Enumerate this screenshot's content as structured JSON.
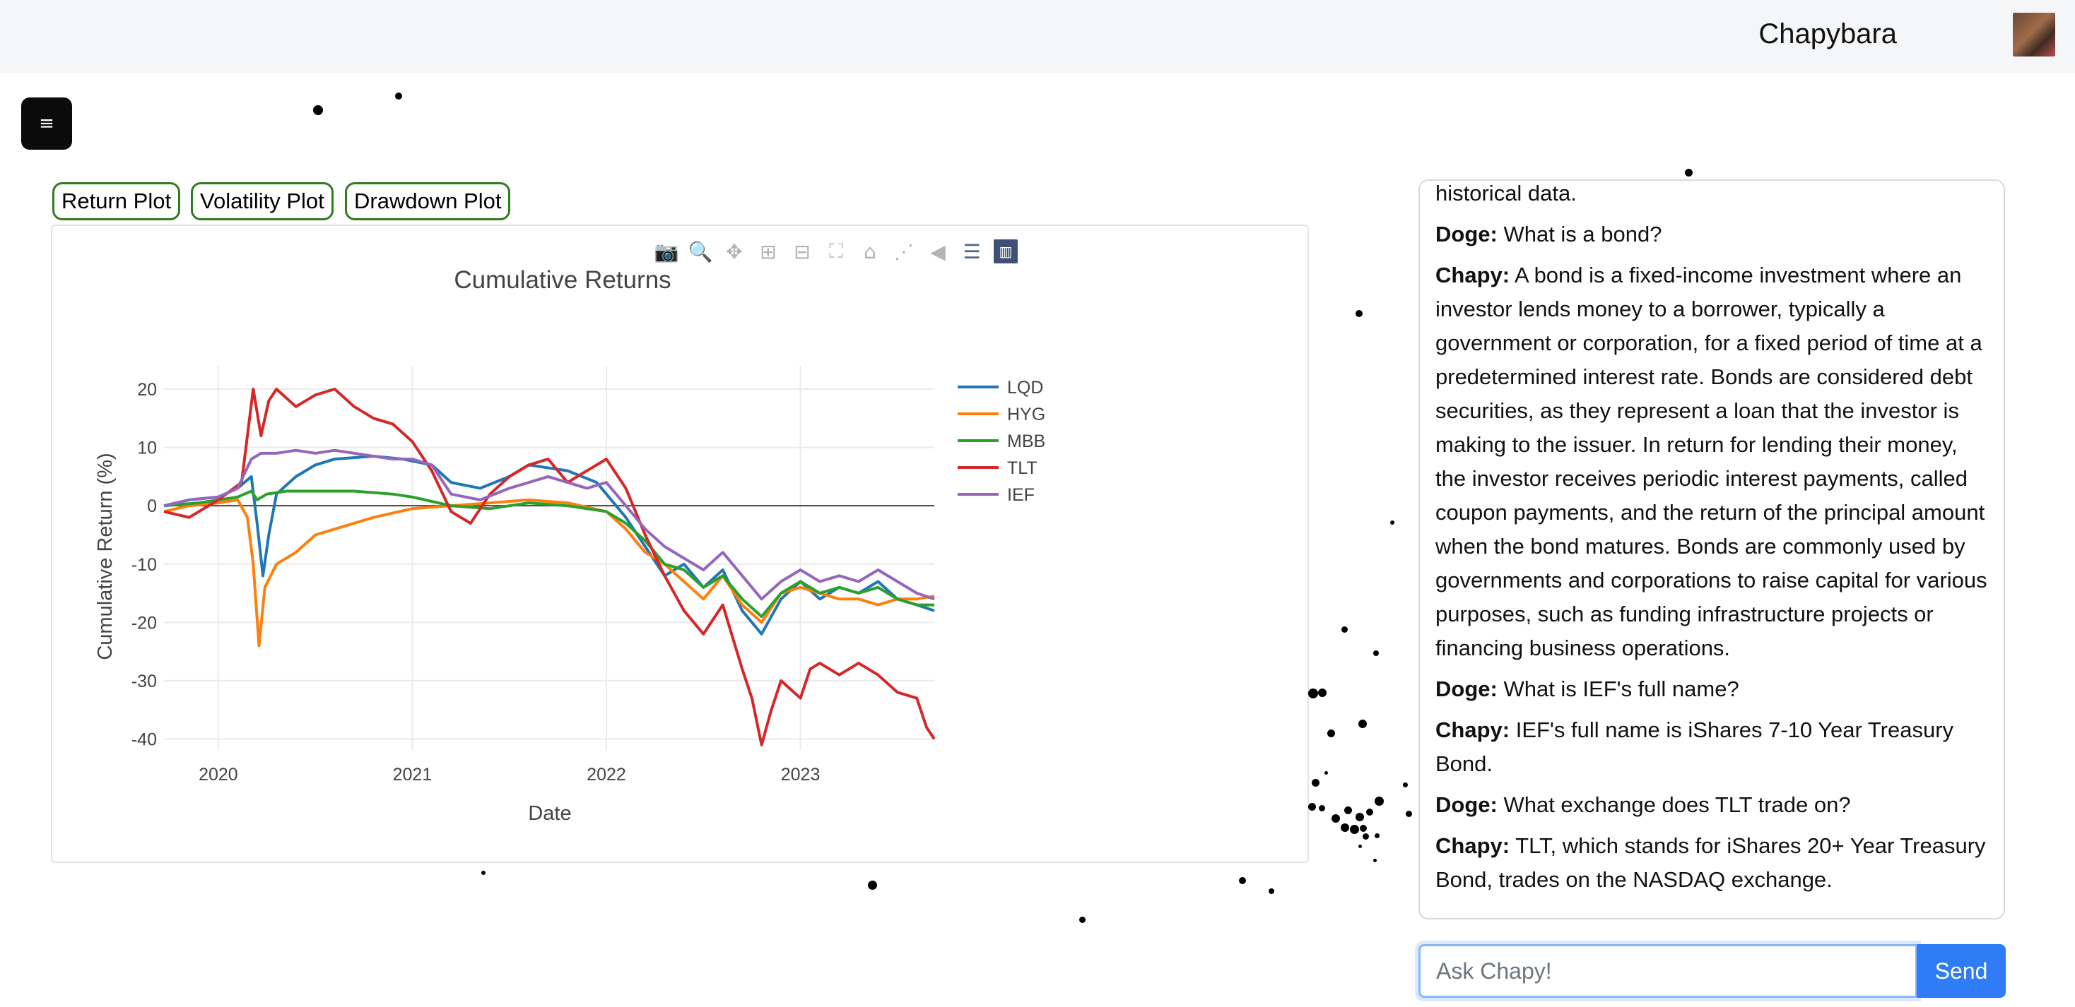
{
  "header": {
    "username": "Chapybara"
  },
  "menu": {
    "icon": "hamburger-icon",
    "glyph": "≡"
  },
  "tabs": [
    {
      "label": "Return Plot"
    },
    {
      "label": "Volatility Plot"
    },
    {
      "label": "Drawdown Plot"
    }
  ],
  "modebar": [
    "camera-icon",
    "zoom-icon",
    "pan-icon",
    "zoom-in-icon",
    "zoom-out-icon",
    "autoscale-icon",
    "reset-axes-icon",
    "spike-lines-icon",
    "hover-closest-icon",
    "hover-compare-icon",
    "plotly-logo-icon"
  ],
  "chat": {
    "messages": [
      {
        "speaker": "",
        "text": "historical data."
      },
      {
        "speaker": "Doge:",
        "text": "What is a bond?"
      },
      {
        "speaker": "Chapy:",
        "text": "A bond is a fixed-income investment where an investor lends money to a borrower, typically a government or corporation, for a fixed period of time at a predetermined interest rate. Bonds are considered debt securities, as they represent a loan that the investor is making to the issuer. In return for lending their money, the investor receives periodic interest payments, called coupon payments, and the return of the principal amount when the bond matures. Bonds are commonly used by governments and corporations to raise capital for various purposes, such as funding infrastructure projects or financing business operations."
      },
      {
        "speaker": "Doge:",
        "text": "What is IEF's full name?"
      },
      {
        "speaker": "Chapy:",
        "text": "IEF's full name is iShares 7-10 Year Treasury Bond."
      },
      {
        "speaker": "Doge:",
        "text": "What exchange does TLT trade on?"
      },
      {
        "speaker": "Chapy:",
        "text": "TLT, which stands for iShares 20+ Year Treasury Bond, trades on the NASDAQ exchange."
      }
    ],
    "input_placeholder": "Ask Chapy!",
    "send_label": "Send"
  },
  "chart_data": {
    "type": "line",
    "title": "Cumulative Returns",
    "xlabel": "Date",
    "ylabel": "Cumulative Return (%)",
    "xlim": [
      2019.72,
      2023.69
    ],
    "ylim": [
      -42,
      24
    ],
    "xticks": [
      "2020",
      "2021",
      "2022",
      "2023"
    ],
    "yticks": [
      20,
      10,
      0,
      -10,
      -20,
      -30,
      -40
    ],
    "grid": true,
    "legend": "top-right",
    "zero_line": true,
    "series": [
      {
        "name": "LQD",
        "color": "#1f77b4",
        "x": [
          2019.72,
          2019.85,
          2020.0,
          2020.1,
          2020.17,
          2020.2,
          2020.23,
          2020.26,
          2020.3,
          2020.4,
          2020.5,
          2020.6,
          2020.8,
          2020.95,
          2021.1,
          2021.2,
          2021.35,
          2021.5,
          2021.6,
          2021.8,
          2021.95,
          2022.1,
          2022.2,
          2022.3,
          2022.4,
          2022.5,
          2022.6,
          2022.7,
          2022.8,
          2022.9,
          2023.0,
          2023.1,
          2023.2,
          2023.3,
          2023.4,
          2023.5,
          2023.6,
          2023.69
        ],
        "y": [
          0,
          1,
          1.5,
          3,
          5,
          -3,
          -12,
          -5,
          2,
          5,
          7,
          8,
          8.5,
          8,
          7,
          4,
          3,
          5,
          7,
          6,
          4,
          -2,
          -7,
          -12,
          -10,
          -14,
          -11,
          -18,
          -22,
          -16,
          -13,
          -16,
          -14,
          -15,
          -13,
          -16,
          -17,
          -18
        ]
      },
      {
        "name": "HYG",
        "color": "#ff7f0e",
        "x": [
          2019.72,
          2019.85,
          2020.0,
          2020.1,
          2020.15,
          2020.18,
          2020.21,
          2020.24,
          2020.3,
          2020.4,
          2020.5,
          2020.6,
          2020.8,
          2021.0,
          2021.2,
          2021.4,
          2021.6,
          2021.8,
          2022.0,
          2022.1,
          2022.2,
          2022.3,
          2022.4,
          2022.5,
          2022.6,
          2022.7,
          2022.8,
          2022.9,
          2023.0,
          2023.1,
          2023.2,
          2023.3,
          2023.4,
          2023.5,
          2023.6,
          2023.69
        ],
        "y": [
          -1,
          0,
          0.5,
          1,
          -2,
          -10,
          -24,
          -14,
          -10,
          -8,
          -5,
          -4,
          -2,
          -0.5,
          0,
          0.5,
          1,
          0.5,
          -1,
          -4,
          -8,
          -10,
          -13,
          -16,
          -12,
          -17,
          -20,
          -15,
          -14,
          -15,
          -16,
          -16,
          -17,
          -16,
          -16,
          -15.5
        ]
      },
      {
        "name": "MBB",
        "color": "#2ca02c",
        "x": [
          2019.72,
          2019.9,
          2020.1,
          2020.17,
          2020.2,
          2020.25,
          2020.35,
          2020.5,
          2020.7,
          2020.9,
          2021.0,
          2021.2,
          2021.4,
          2021.6,
          2021.8,
          2022.0,
          2022.1,
          2022.2,
          2022.3,
          2022.4,
          2022.5,
          2022.6,
          2022.7,
          2022.8,
          2022.9,
          2023.0,
          2023.1,
          2023.2,
          2023.3,
          2023.4,
          2023.5,
          2023.6,
          2023.69
        ],
        "y": [
          0,
          0.5,
          1.5,
          2.5,
          1,
          2,
          2.5,
          2.5,
          2.5,
          2,
          1.5,
          0,
          -0.5,
          0.5,
          0,
          -1,
          -3,
          -6,
          -10,
          -11,
          -14,
          -12,
          -16,
          -19,
          -15,
          -13,
          -15,
          -14,
          -15,
          -14,
          -16,
          -17,
          -17
        ]
      },
      {
        "name": "TLT",
        "color": "#d62728",
        "x": [
          2019.72,
          2019.85,
          2020.0,
          2020.12,
          2020.18,
          2020.22,
          2020.26,
          2020.3,
          2020.4,
          2020.5,
          2020.6,
          2020.7,
          2020.8,
          2020.9,
          2021.0,
          2021.1,
          2021.2,
          2021.3,
          2021.4,
          2021.5,
          2021.6,
          2021.7,
          2021.8,
          2021.9,
          2022.0,
          2022.1,
          2022.2,
          2022.3,
          2022.4,
          2022.5,
          2022.6,
          2022.7,
          2022.75,
          2022.8,
          2022.85,
          2022.9,
          2023.0,
          2023.05,
          2023.1,
          2023.2,
          2023.3,
          2023.4,
          2023.5,
          2023.6,
          2023.65,
          2023.69
        ],
        "y": [
          -1,
          -2,
          1,
          4,
          20,
          12,
          18,
          20,
          17,
          19,
          20,
          17,
          15,
          14,
          11,
          6,
          -1,
          -3,
          2,
          5,
          7,
          8,
          4,
          6,
          8,
          3,
          -5,
          -12,
          -18,
          -22,
          -17,
          -28,
          -33,
          -41,
          -35,
          -30,
          -33,
          -28,
          -27,
          -29,
          -27,
          -29,
          -32,
          -33,
          -38,
          -40
        ]
      },
      {
        "name": "IEF",
        "color": "#9467bd",
        "x": [
          2019.72,
          2019.85,
          2020.0,
          2020.1,
          2020.17,
          2020.22,
          2020.3,
          2020.4,
          2020.5,
          2020.6,
          2020.7,
          2020.8,
          2020.9,
          2021.0,
          2021.1,
          2021.2,
          2021.35,
          2021.5,
          2021.6,
          2021.7,
          2021.8,
          2021.9,
          2022.0,
          2022.1,
          2022.2,
          2022.3,
          2022.4,
          2022.5,
          2022.6,
          2022.7,
          2022.8,
          2022.9,
          2023.0,
          2023.1,
          2023.2,
          2023.3,
          2023.4,
          2023.5,
          2023.6,
          2023.69
        ],
        "y": [
          0,
          1,
          1.5,
          3,
          8,
          9,
          9,
          9.5,
          9,
          9.5,
          9,
          8.5,
          8,
          8,
          7,
          2,
          1,
          3,
          4,
          5,
          4,
          3,
          4,
          0,
          -4,
          -7,
          -9,
          -11,
          -8,
          -12,
          -16,
          -13,
          -11,
          -13,
          -12,
          -13,
          -11,
          -13,
          -15,
          -16
        ]
      }
    ]
  }
}
